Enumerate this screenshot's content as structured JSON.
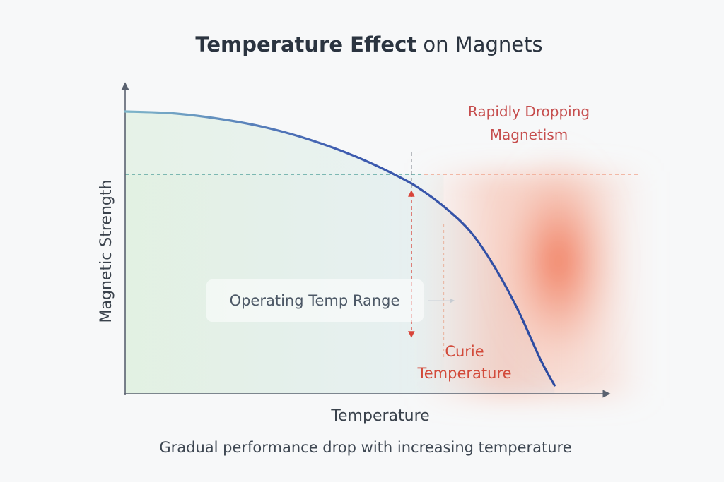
{
  "chart_data": {
    "type": "line",
    "title_bold": "Temperature Effect",
    "title_rest": " on Magnets",
    "xlabel": "Temperature",
    "ylabel": "Magnetic Strength",
    "caption": "Gradual performance drop with increasing temperature",
    "xlim": [
      0,
      100
    ],
    "ylim": [
      0,
      100
    ],
    "grid": false,
    "series": [
      {
        "x": [
          0,
          10,
          20,
          30,
          40,
          50,
          60,
          65,
          70,
          75,
          80,
          85,
          90,
          93
        ],
        "y": [
          100,
          99.4,
          97.5,
          94.5,
          90.0,
          84.0,
          76.3,
          71.3,
          65.0,
          57.0,
          45.0,
          30.0,
          12.0,
          3.0
        ]
      }
    ],
    "reference_line_y": 77.7,
    "operating_range_end_x": 69,
    "curie_x": 62,
    "annotations": {
      "rapid_drop_line1": "Rapidly Dropping",
      "rapid_drop_line2": "Magnetism",
      "curie_line1": "Curie",
      "curie_line2": "Temperature",
      "operating_range": "Operating Temp Range"
    },
    "colors": {
      "curve": "#3b55a8",
      "curie": "#d8453a",
      "safe_zone": "#d8edd4",
      "danger_zone": "#f07a5a",
      "reference": "#4aa39a"
    }
  }
}
